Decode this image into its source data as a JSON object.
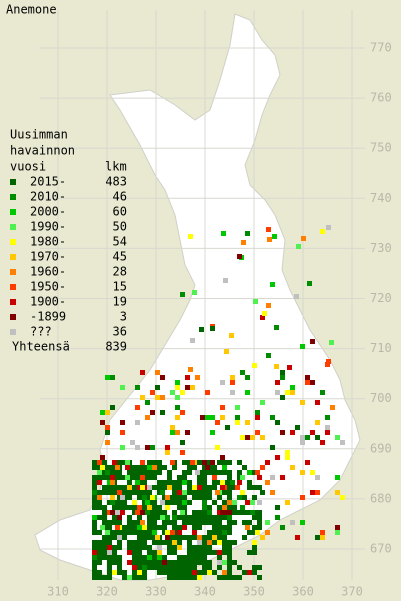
{
  "title": "Anemone",
  "legend": {
    "header": [
      "Uusimman",
      "havainnon",
      "vuosi"
    ],
    "count_header": "lkm",
    "rows": [
      {
        "label": "2015-",
        "count": 483,
        "color": "#006400"
      },
      {
        "label": "2010-",
        "count": 46,
        "color": "#008c00"
      },
      {
        "label": "2000-",
        "count": 60,
        "color": "#00c800"
      },
      {
        "label": "1990-",
        "count": 50,
        "color": "#50f050"
      },
      {
        "label": "1980-",
        "count": 54,
        "color": "#ffff00"
      },
      {
        "label": "1970-",
        "count": 45,
        "color": "#ffc800"
      },
      {
        "label": "1960-",
        "count": 28,
        "color": "#ff8000"
      },
      {
        "label": "1950-",
        "count": 15,
        "color": "#ff3c00"
      },
      {
        "label": "1900-",
        "count": 19,
        "color": "#c80000"
      },
      {
        "label": "-1899",
        "count": 3,
        "color": "#800000"
      },
      {
        "label": "???",
        "count": 36,
        "color": "#c0c0c0"
      }
    ],
    "total_label": "Yhteensä",
    "total": 839
  },
  "grid": {
    "yticks": [
      670,
      680,
      690,
      700,
      710,
      720,
      730,
      740,
      750,
      760,
      770
    ],
    "xticks": [
      310,
      320,
      330,
      340,
      350,
      360,
      370
    ]
  }
}
